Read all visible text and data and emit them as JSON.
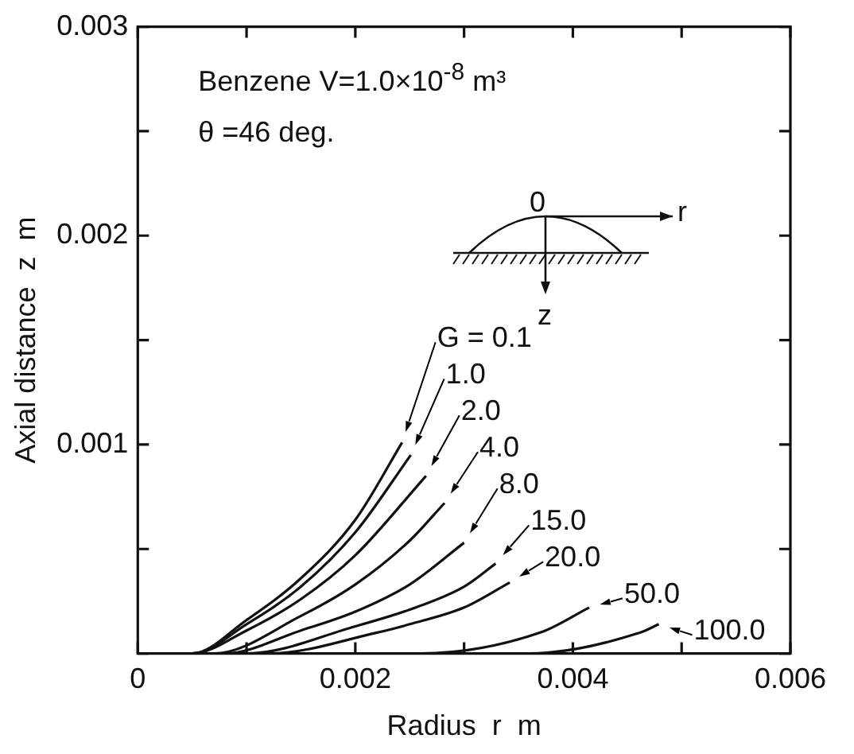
{
  "chart_data": {
    "type": "line",
    "xlabel": "Radius  r  m",
    "ylabel": "Axial distance  z  m",
    "xlim": [
      0,
      0.006
    ],
    "ylim": [
      0,
      0.003
    ],
    "xticks": [
      0,
      {
        "value": 0.001,
        "label": null
      },
      0.002,
      {
        "value": 0.003,
        "label": null
      },
      0.004,
      {
        "value": 0.005,
        "label": null
      },
      0.006
    ],
    "yticks": [
      {
        "value": 0,
        "label": null
      },
      {
        "value": 0.0005,
        "label": null
      },
      0.001,
      {
        "value": 0.0015,
        "label": null
      },
      0.002,
      {
        "value": 0.0025,
        "label": null
      },
      0.003
    ],
    "grid": false,
    "legend": "bottom right",
    "marker": "none",
    "line_style": "solid",
    "annotations": [
      "Benzene   V=1.0×10$^{-8}$ m³",
      "θ =46 deg.",
      "0",
      "r",
      "z"
    ],
    "series": [
      {
        "name": "G = 0.1",
        "color": "#111111",
        "x": [
          0,
          0.0005,
          0.001,
          0.0015,
          0.002,
          0.00243
        ],
        "values": [
          0,
          0,
          0.00016,
          0.00036,
          0.00064,
          0.00101
        ]
      },
      {
        "name": "1.0",
        "color": "#111111",
        "x": [
          0,
          0.0005,
          0.001,
          0.0015,
          0.002,
          0.00251
        ],
        "values": [
          0,
          0,
          0.00014,
          0.00032,
          0.00058,
          0.00095
        ]
      },
      {
        "name": "2.0",
        "color": "#111111",
        "x": [
          0,
          0.0005,
          0.001,
          0.0015,
          0.002,
          0.00265
        ],
        "values": [
          0,
          0,
          0.00011,
          0.00026,
          0.00047,
          0.00085
        ]
      },
      {
        "name": "4.0",
        "color": "#111111",
        "x": [
          0,
          0.0007,
          0.0015,
          0.002,
          0.0025,
          0.00282
        ],
        "values": [
          0,
          0,
          0.00018,
          0.00033,
          0.00054,
          0.00072
        ]
      },
      {
        "name": "8.0",
        "color": "#111111",
        "x": [
          0,
          0.0008,
          0.0015,
          0.002,
          0.0025,
          0.003
        ],
        "values": [
          0,
          0,
          0.00011,
          0.0002,
          0.00033,
          0.00053
        ]
      },
      {
        "name": "15.0",
        "color": "#111111",
        "x": [
          0,
          0.001,
          0.002,
          0.0025,
          0.003,
          0.00329
        ],
        "values": [
          0,
          0,
          0.00013,
          0.00021,
          0.00032,
          0.00043
        ]
      },
      {
        "name": "20.0",
        "color": "#111111",
        "x": [
          0,
          0.0012,
          0.0022,
          0.0025,
          0.003,
          0.00342
        ],
        "values": [
          0,
          0,
          0.0001,
          0.00014,
          0.00022,
          0.00034
        ]
      },
      {
        "name": "50.0",
        "color": "#111111",
        "x": [
          0,
          0.0026,
          0.0037,
          0.00415
        ],
        "values": [
          0,
          0,
          0.0001,
          0.00022
        ]
      },
      {
        "name": "100.0",
        "color": "#111111",
        "x": [
          0,
          0.0036,
          0.00462,
          0.00479
        ],
        "values": [
          0,
          0,
          0.0001,
          0.00014
        ]
      }
    ]
  }
}
